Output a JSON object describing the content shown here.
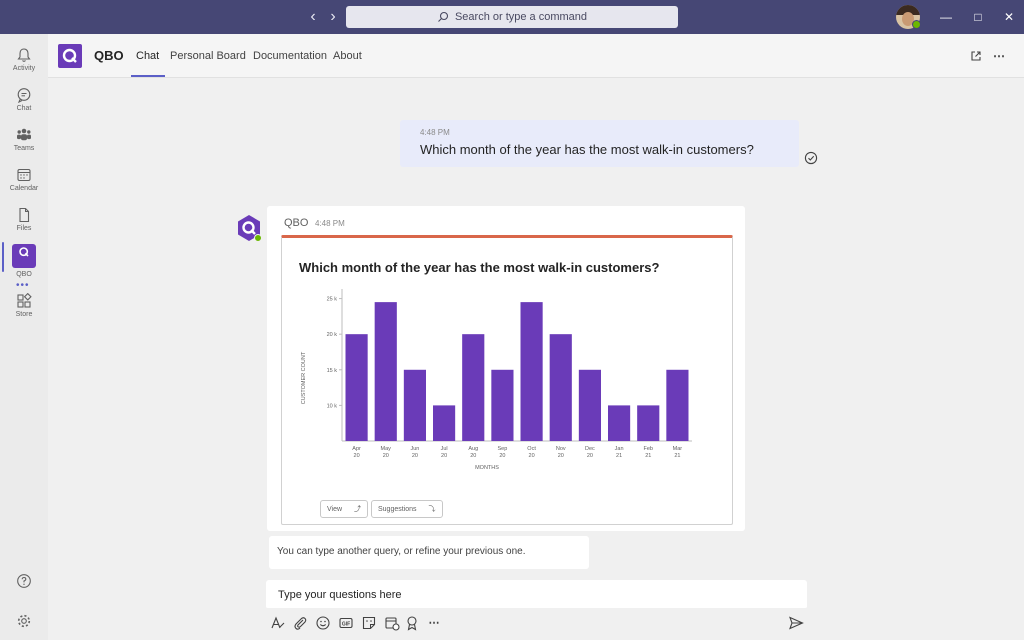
{
  "search": {
    "placeholder": "Search or type a command"
  },
  "rail": {
    "items": [
      {
        "label": "Activity",
        "icon": "bell-icon"
      },
      {
        "label": "Chat",
        "icon": "chat-icon"
      },
      {
        "label": "Teams",
        "icon": "teams-icon"
      },
      {
        "label": "Calendar",
        "icon": "calendar-icon"
      },
      {
        "label": "Files",
        "icon": "file-icon"
      },
      {
        "label": "QBO",
        "icon": "qbo-app-icon"
      },
      {
        "label": "Store",
        "icon": "store-icon"
      }
    ],
    "more": "•••"
  },
  "header": {
    "app_name": "QBO",
    "tabs": [
      "Chat",
      "Personal Board",
      "Documentation",
      "About"
    ],
    "active_tab": "Chat"
  },
  "messages": {
    "user": {
      "time": "4:48 PM",
      "text": "Which month of the year has the most walk-in customers?"
    },
    "bot": {
      "sender": "QBO",
      "time": "4:48 PM",
      "card_title": "Which month of the year has the most walk-in customers?"
    },
    "hint": "You can type another query, or refine your previous one."
  },
  "card_buttons": {
    "view": "View",
    "suggestions": "Suggestions"
  },
  "composer": {
    "placeholder": "Type your questions here"
  },
  "colors": {
    "titlebar": "#464775",
    "brand": "#6a3bb8",
    "bar": "#6a3bb8",
    "accent": "#5b5fc7",
    "card_top": "#d9674a"
  },
  "chart_data": {
    "type": "bar",
    "title": "Which month of the year has the most walk-in customers?",
    "xlabel": "MONTHS",
    "ylabel": "CUSTOMER COUNT",
    "categories": [
      "Apr 20",
      "May 20",
      "Jun 20",
      "Jul 20",
      "Aug 20",
      "Sep 20",
      "Oct 20",
      "Nov 20",
      "Dec 20",
      "Jan 21",
      "Feb 21",
      "Mar 21"
    ],
    "category_lines": [
      [
        "Apr",
        "20"
      ],
      [
        "May",
        "20"
      ],
      [
        "Jun",
        "20"
      ],
      [
        "Jul",
        "20"
      ],
      [
        "Aug",
        "20"
      ],
      [
        "Sep",
        "20"
      ],
      [
        "Oct",
        "20"
      ],
      [
        "Nov",
        "20"
      ],
      [
        "Dec",
        "20"
      ],
      [
        "Jan",
        "21"
      ],
      [
        "Feb",
        "21"
      ],
      [
        "Mar",
        "21"
      ]
    ],
    "values": [
      20000,
      24500,
      15000,
      10000,
      20000,
      15000,
      24500,
      20000,
      15000,
      10000,
      10000,
      15000
    ],
    "yticks": [
      10000,
      15000,
      20000,
      25000
    ],
    "ytick_labels": [
      "10 k",
      "15 k",
      "20 k",
      "25 k"
    ],
    "ylim": [
      5000,
      25500
    ],
    "grid": false,
    "legend": "none"
  }
}
